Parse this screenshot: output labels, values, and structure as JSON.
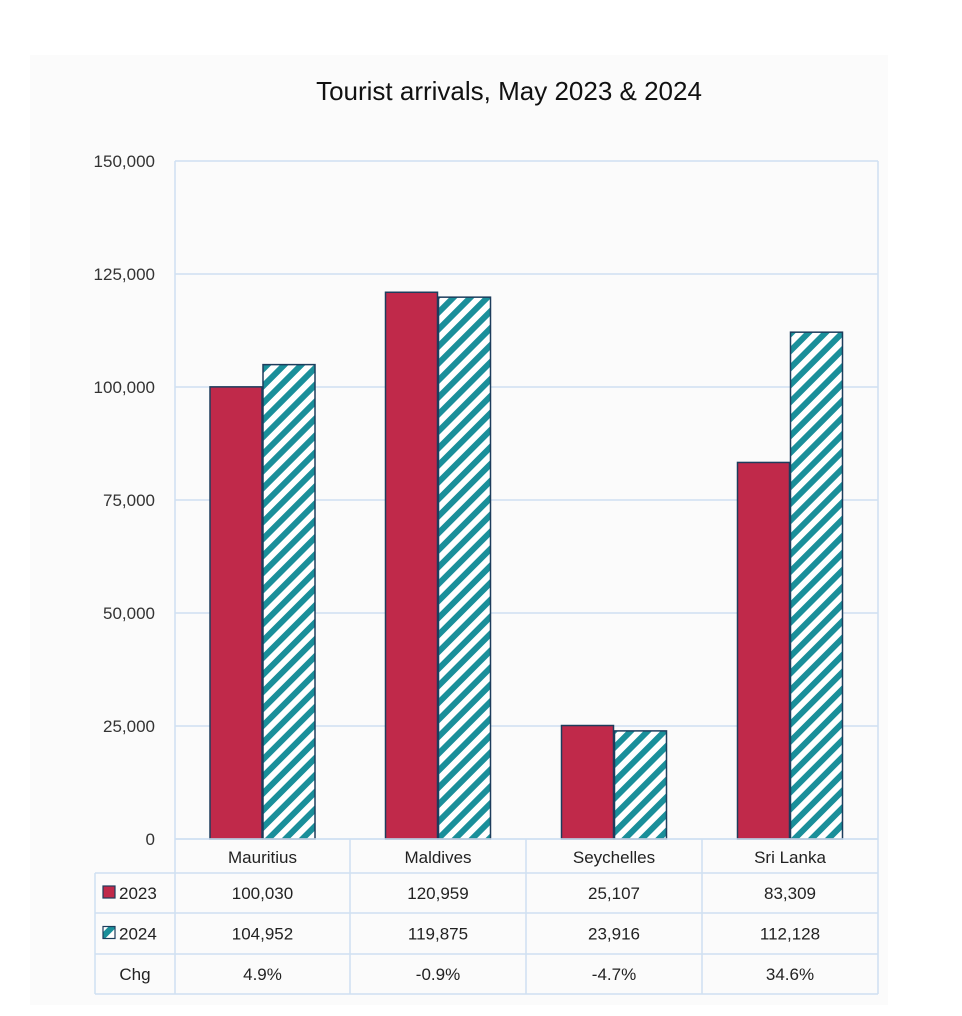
{
  "chart_data": {
    "type": "bar",
    "title": "Tourist arrivals, May 2023 & 2024",
    "categories": [
      "Mauritius",
      "Maldives",
      "Seychelles",
      "Sri Lanka"
    ],
    "series": [
      {
        "name": "2023",
        "values": [
          100030,
          120959,
          25107,
          83309
        ],
        "labels": [
          "100,030",
          "120,959",
          "25,107",
          "83,309"
        ]
      },
      {
        "name": "2024",
        "values": [
          104952,
          119875,
          23916,
          112128
        ],
        "labels": [
          "104,952",
          "119,875",
          "23,916",
          "112,128"
        ]
      }
    ],
    "change_row": {
      "label": "Chg",
      "values": [
        "4.9%",
        "-0.9%",
        "-4.7%",
        "34.6%"
      ]
    },
    "ylim": [
      0,
      150000
    ],
    "yticks": [
      0,
      25000,
      50000,
      75000,
      100000,
      125000,
      150000
    ],
    "ytick_labels": [
      "0",
      "25,000",
      "50,000",
      "75,000",
      "100,000",
      "125,000",
      "150,000"
    ],
    "grid": true,
    "legend": "data-table",
    "colors": {
      "series_2023": "#c0294a",
      "series_2024_stripe": "#1a8f9a",
      "outline": "#1d3d5c",
      "grid": "#cfe0f2"
    }
  }
}
